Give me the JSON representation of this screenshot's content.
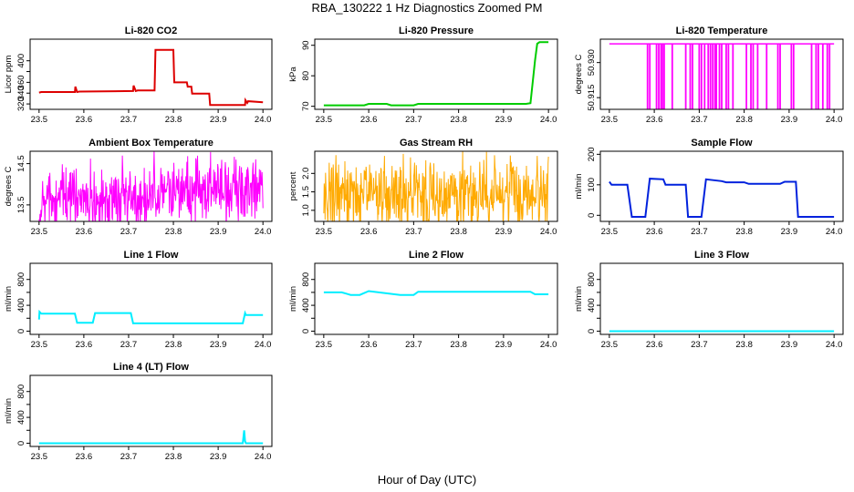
{
  "figure": {
    "title": "RBA_130222  1 Hz Diagnostics Zoomed PM",
    "xlabel": "Hour of Day (UTC)"
  },
  "chart_data": [
    {
      "type": "line",
      "title": "Li-820 CO2",
      "ylabel": "Licor ppm",
      "color": "#dd0000",
      "xlim": [
        23.5,
        24.0
      ],
      "ylim": [
        310,
        440
      ],
      "xticks": [
        "23.5",
        "23.6",
        "23.7",
        "23.8",
        "23.9",
        "24.0"
      ],
      "yticks": [
        "320",
        "340",
        "360",
        "380",
        "400"
      ],
      "yticks_visible": [
        320,
        340,
        360,
        400
      ],
      "series": [
        {
          "x": [
            23.5,
            23.505,
            23.58,
            23.581,
            23.585,
            23.59,
            23.71,
            23.711,
            23.716,
            23.72,
            23.758,
            23.76,
            23.8,
            23.802,
            23.83,
            23.832,
            23.84,
            23.842,
            23.88,
            23.882,
            23.96,
            23.961,
            23.965,
            23.967,
            24.0
          ],
          "y": [
            341,
            342,
            342,
            352,
            342,
            343,
            344,
            354,
            344,
            345,
            345,
            420,
            420,
            360,
            360,
            352,
            352,
            339,
            339,
            318,
            318,
            327,
            322,
            325,
            323
          ]
        }
      ]
    },
    {
      "type": "line",
      "title": "Li-820 Pressure",
      "ylabel": "kPa",
      "color": "#00cc00",
      "xlim": [
        23.5,
        24.0
      ],
      "ylim": [
        69,
        92
      ],
      "xticks": [
        "23.5",
        "23.6",
        "23.7",
        "23.8",
        "23.9",
        "24.0"
      ],
      "yticks": [
        "70",
        "80",
        "90"
      ],
      "series": [
        {
          "x": [
            23.5,
            23.59,
            23.6,
            23.64,
            23.65,
            23.7,
            23.71,
            23.95,
            23.96,
            23.97,
            23.975,
            23.98,
            24.0
          ],
          "y": [
            70.3,
            70.3,
            70.8,
            70.8,
            70.3,
            70.3,
            70.8,
            70.8,
            71,
            85,
            90.5,
            91,
            91
          ]
        }
      ]
    },
    {
      "type": "line",
      "title": "Li-820 Temperature",
      "ylabel": "degrees C",
      "color": "#ff00ff",
      "xlim": [
        23.5,
        24.0
      ],
      "ylim": [
        50.91,
        50.94
      ],
      "xticks": [
        "23.5",
        "23.6",
        "23.7",
        "23.8",
        "23.9",
        "24.0"
      ],
      "yticks": [
        "50.915",
        "50.930"
      ],
      "baseline": 50.938,
      "dips_x": [
        23.585,
        23.59,
        23.605,
        23.61,
        23.615,
        23.618,
        23.622,
        23.64,
        23.67,
        23.68,
        23.685,
        23.7,
        23.705,
        23.712,
        23.72,
        23.725,
        23.73,
        23.735,
        23.738,
        23.745,
        23.75,
        23.76,
        23.765,
        23.775,
        23.805,
        23.815,
        23.82,
        23.83,
        23.85,
        23.875,
        23.88,
        23.905,
        23.91,
        23.95,
        23.96,
        23.965,
        23.975,
        23.985,
        23.99
      ]
    },
    {
      "type": "line",
      "title": "Ambient Box Temperature",
      "ylabel": "degrees C",
      "color": "#ff00ff",
      "xlim": [
        23.5,
        24.0
      ],
      "ylim": [
        13.1,
        14.8
      ],
      "xticks": [
        "23.5",
        "23.6",
        "23.7",
        "23.8",
        "23.9",
        "24.0"
      ],
      "yticks": [
        "13.5",
        "14.5"
      ],
      "noise": {
        "center_start": 13.6,
        "center_end": 13.9,
        "amplitude": 0.85,
        "points": 500
      }
    },
    {
      "type": "line",
      "title": "Gas Stream RH",
      "ylabel": "percent",
      "color": "#ffaa00",
      "xlim": [
        23.5,
        24.0
      ],
      "ylim": [
        0.7,
        2.6
      ],
      "xticks": [
        "23.5",
        "23.6",
        "23.7",
        "23.8",
        "23.9",
        "24.0"
      ],
      "yticks": [
        "1.0",
        "1.5",
        "2.0"
      ],
      "noise": {
        "center_start": 1.45,
        "center_end": 1.4,
        "amplitude": 1.1,
        "points": 500
      }
    },
    {
      "type": "line",
      "title": "Sample Flow",
      "ylabel": "ml/min",
      "color": "#0022dd",
      "xlim": [
        23.5,
        24.0
      ],
      "ylim": [
        -20,
        210
      ],
      "xticks": [
        "23.5",
        "23.6",
        "23.7",
        "23.8",
        "23.9",
        "24.0"
      ],
      "yticks": [
        "0",
        "100",
        "200"
      ],
      "series": [
        {
          "x": [
            23.5,
            23.505,
            23.54,
            23.55,
            23.58,
            23.59,
            23.62,
            23.625,
            23.67,
            23.675,
            23.705,
            23.715,
            23.75,
            23.76,
            23.8,
            23.81,
            23.88,
            23.89,
            23.915,
            23.92,
            24.0
          ],
          "y": [
            110,
            100,
            100,
            -5,
            -5,
            120,
            118,
            100,
            100,
            -5,
            -5,
            118,
            112,
            108,
            108,
            103,
            103,
            110,
            110,
            -5,
            -5
          ]
        }
      ]
    },
    {
      "type": "line",
      "title": "Line 1 Flow",
      "ylabel": "ml/min",
      "color": "#00eeff",
      "xlim": [
        23.5,
        24.0
      ],
      "ylim": [
        -50,
        1050
      ],
      "xticks": [
        "23.5",
        "23.6",
        "23.7",
        "23.8",
        "23.9",
        "24.0"
      ],
      "yticks": [
        "0",
        "200",
        "400",
        "600",
        "800"
      ],
      "yticks_visible": [
        0,
        400,
        800
      ],
      "series": [
        {
          "x": [
            23.5,
            23.501,
            23.505,
            23.58,
            23.585,
            23.62,
            23.625,
            23.705,
            23.71,
            23.955,
            23.96,
            23.962,
            24.0
          ],
          "y": [
            180,
            300,
            270,
            270,
            130,
            130,
            280,
            280,
            120,
            120,
            280,
            250,
            250
          ]
        }
      ]
    },
    {
      "type": "line",
      "title": "Line 2 Flow",
      "ylabel": "ml/min",
      "color": "#00eeff",
      "xlim": [
        23.5,
        24.0
      ],
      "ylim": [
        -50,
        1050
      ],
      "xticks": [
        "23.5",
        "23.6",
        "23.7",
        "23.8",
        "23.9",
        "24.0"
      ],
      "yticks": [
        "0",
        "200",
        "400",
        "600",
        "800"
      ],
      "yticks_visible": [
        0,
        400,
        800
      ],
      "series": [
        {
          "x": [
            23.5,
            23.54,
            23.56,
            23.58,
            23.6,
            23.67,
            23.7,
            23.71,
            23.96,
            23.97,
            24.0
          ],
          "y": [
            600,
            600,
            560,
            560,
            620,
            560,
            560,
            610,
            610,
            570,
            570
          ]
        }
      ]
    },
    {
      "type": "line",
      "title": "Line 3 Flow",
      "ylabel": "ml/min",
      "color": "#00eeff",
      "xlim": [
        23.5,
        24.0
      ],
      "ylim": [
        -50,
        1050
      ],
      "xticks": [
        "23.5",
        "23.6",
        "23.7",
        "23.8",
        "23.9",
        "24.0"
      ],
      "yticks": [
        "0",
        "200",
        "400",
        "600",
        "800"
      ],
      "yticks_visible": [
        0,
        400,
        800
      ],
      "series": [
        {
          "x": [
            23.5,
            24.0
          ],
          "y": [
            0,
            0
          ]
        }
      ]
    },
    {
      "type": "line",
      "title": "Line 4 (LT) Flow",
      "ylabel": "ml/min",
      "color": "#00eeff",
      "xlim": [
        23.5,
        24.0
      ],
      "ylim": [
        -50,
        1050
      ],
      "xticks": [
        "23.5",
        "23.6",
        "23.7",
        "23.8",
        "23.9",
        "24.0"
      ],
      "yticks": [
        "0",
        "200",
        "400",
        "600",
        "800"
      ],
      "yticks_visible": [
        0,
        400,
        800
      ],
      "series": [
        {
          "x": [
            23.5,
            23.955,
            23.958,
            23.96,
            23.962,
            24.0
          ],
          "y": [
            0,
            0,
            200,
            30,
            0,
            0
          ]
        }
      ]
    }
  ]
}
